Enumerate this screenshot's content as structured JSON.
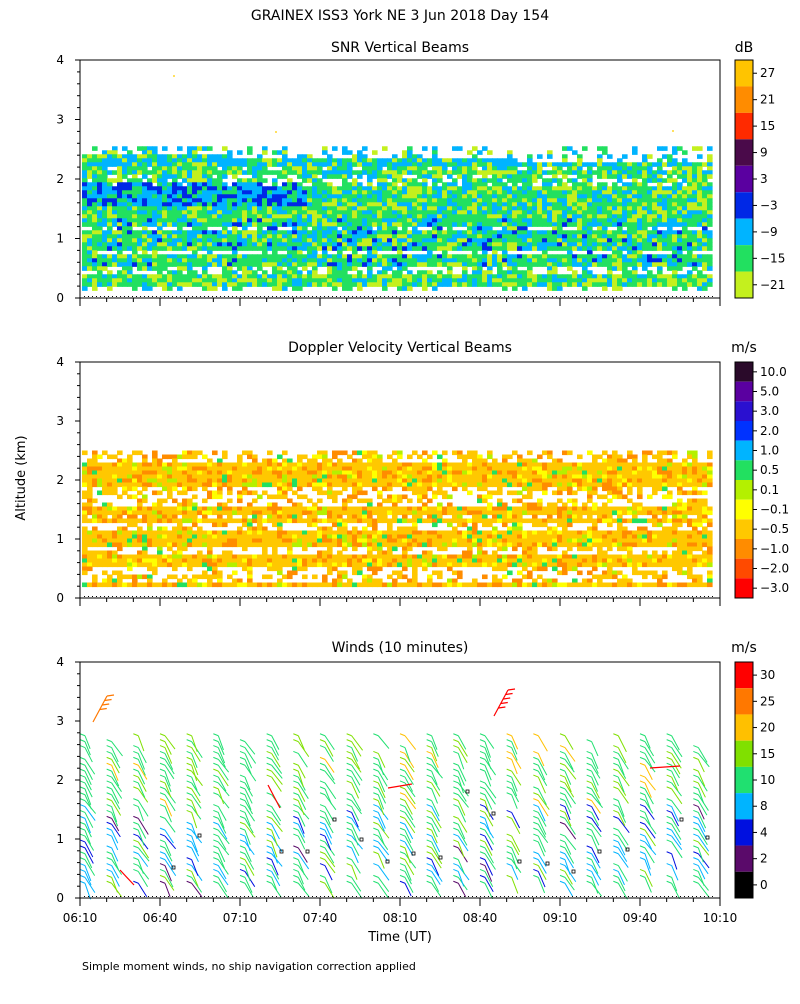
{
  "page": {
    "title": "GRAINEX ISS3 York NE    3 Jun 2018 Day 154",
    "y_axis_label": "Altitude (km)",
    "x_axis_label": "Time (UT)",
    "footnote": "Simple moment winds, no ship navigation correction applied"
  },
  "chart_data": [
    {
      "type": "heatmap",
      "title": "SNR Vertical Beams",
      "ylabel": "Altitude (km)",
      "ylim": [
        0,
        4
      ],
      "yticks": [
        "0",
        "1",
        "2",
        "3",
        "4"
      ],
      "xlim": [
        "06:10",
        "10:10"
      ],
      "colorbar": {
        "unit": "dB",
        "ticks": [
          "27",
          "21",
          "15",
          "9",
          "3",
          "−3",
          "−9",
          "−15",
          "−21"
        ],
        "colors": [
          "#ffc400",
          "#ff8c00",
          "#ff2a00",
          "#4a0a4a",
          "#5a00a0",
          "#0028e6",
          "#00b4ff",
          "#22e060",
          "#c4f01e"
        ]
      },
      "valid_altitude_km": [
        0.2,
        2.5
      ],
      "bands": [
        {
          "alt": 2.35,
          "dominant": "#00b4ff"
        },
        {
          "alt": 2.0,
          "dominant": "#22e060"
        },
        {
          "alt": 1.7,
          "dominant": "#0028e6"
        },
        {
          "alt": 1.3,
          "dominant": "#22e060"
        },
        {
          "alt": 0.9,
          "dominant": "#00b4ff"
        },
        {
          "alt": 0.5,
          "dominant": "#22e060"
        }
      ]
    },
    {
      "type": "heatmap",
      "title": "Doppler Velocity Vertical Beams",
      "ylabel": "Altitude (km)",
      "ylim": [
        0,
        4
      ],
      "yticks": [
        "0",
        "1",
        "2",
        "3",
        "4"
      ],
      "xlim": [
        "06:10",
        "10:10"
      ],
      "colorbar": {
        "unit": "m/s",
        "ticks": [
          "10.0",
          "5.0",
          "3.0",
          "2.0",
          "1.0",
          "0.5",
          "0.1",
          "−0.1",
          "−0.5",
          "−1.0",
          "−2.0",
          "−3.0"
        ],
        "colors": [
          "#2a0a2a",
          "#5a00a0",
          "#2a10d0",
          "#0032ff",
          "#00b4ff",
          "#22e060",
          "#b4f000",
          "#ffff00",
          "#ffc800",
          "#ff8c00",
          "#ff4a00",
          "#ff0000"
        ]
      },
      "valid_altitude_km": [
        0.2,
        2.5
      ],
      "dominant_value": "−0.5"
    },
    {
      "type": "scatter",
      "title": "Winds (10 minutes)",
      "ylabel": "Altitude (km)",
      "xlabel": "Time (UT)",
      "ylim": [
        0,
        4
      ],
      "yticks": [
        "0",
        "1",
        "2",
        "3",
        "4"
      ],
      "xticks": [
        "06:10",
        "06:40",
        "07:10",
        "07:40",
        "08:10",
        "08:40",
        "09:10",
        "09:40",
        "10:10"
      ],
      "xlim": [
        "06:10",
        "10:10"
      ],
      "colorbar": {
        "unit": "m/s",
        "ticks": [
          "30",
          "25",
          "20",
          "15",
          "10",
          "8",
          "4",
          "2",
          "0"
        ],
        "colors": [
          "#ff0000",
          "#ff7800",
          "#ffc000",
          "#80e000",
          "#20e070",
          "#00b4ff",
          "#0010e0",
          "#5a0a6a",
          "#000000"
        ]
      },
      "profile_times": [
        "06:10",
        "06:20",
        "06:30",
        "06:40",
        "06:50",
        "07:00",
        "07:10",
        "07:20",
        "07:30",
        "07:40",
        "07:50",
        "08:00",
        "08:10",
        "08:20",
        "08:30",
        "08:40",
        "08:50",
        "09:00",
        "09:10",
        "09:20",
        "09:30",
        "09:40",
        "09:50",
        "10:00"
      ],
      "typical_speed_ms": 15,
      "notes": "Wind barbs mostly green (10–20 m/s) from 0.2 to 2.8 km; red/orange barbs (>25 m/s) near 3 km at 06:10 and 08:45."
    }
  ]
}
